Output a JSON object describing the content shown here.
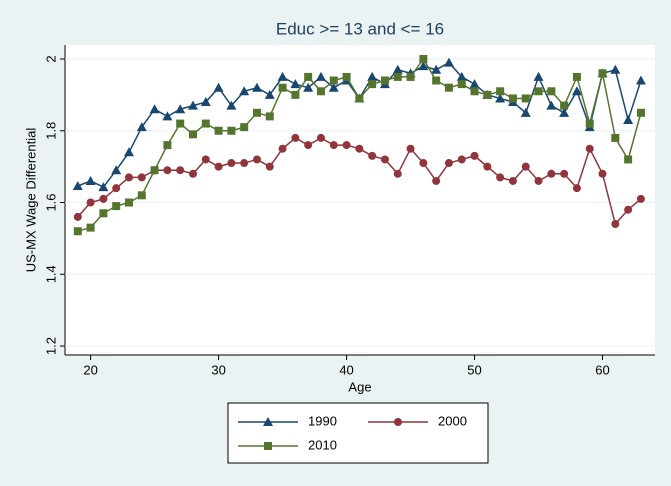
{
  "chart_data": {
    "type": "line",
    "title": "Educ >= 13 and <= 16",
    "xlabel": "Age",
    "ylabel": "US-MX Wage Differential",
    "x": [
      19,
      20,
      21,
      22,
      23,
      24,
      25,
      26,
      27,
      28,
      29,
      30,
      31,
      32,
      33,
      34,
      35,
      36,
      37,
      38,
      39,
      40,
      41,
      42,
      43,
      44,
      45,
      46,
      47,
      48,
      49,
      50,
      51,
      52,
      53,
      54,
      55,
      56,
      57,
      58,
      59,
      60,
      61,
      62,
      63
    ],
    "series": [
      {
        "name": "1990",
        "color": "#1a476f",
        "marker": "triangle",
        "values": [
          1.646,
          1.66,
          1.643,
          1.69,
          1.74,
          1.81,
          1.86,
          1.84,
          1.86,
          1.87,
          1.88,
          1.92,
          1.87,
          1.91,
          1.92,
          1.9,
          1.95,
          1.93,
          1.92,
          1.95,
          1.92,
          1.94,
          1.89,
          1.95,
          1.93,
          1.97,
          1.96,
          1.98,
          1.97,
          1.99,
          1.95,
          1.93,
          1.9,
          1.89,
          1.88,
          1.85,
          1.95,
          1.87,
          1.85,
          1.91,
          1.81,
          1.96,
          1.97,
          1.83,
          1.94
        ]
      },
      {
        "name": "2000",
        "color": "#90353b",
        "marker": "circle",
        "values": [
          1.56,
          1.6,
          1.61,
          1.64,
          1.67,
          1.67,
          1.69,
          1.69,
          1.69,
          1.68,
          1.72,
          1.7,
          1.71,
          1.71,
          1.72,
          1.7,
          1.75,
          1.78,
          1.76,
          1.78,
          1.76,
          1.76,
          1.75,
          1.73,
          1.72,
          1.68,
          1.75,
          1.71,
          1.66,
          1.71,
          1.72,
          1.73,
          1.7,
          1.67,
          1.66,
          1.7,
          1.66,
          1.68,
          1.68,
          1.64,
          1.75,
          1.68,
          1.54,
          1.58,
          1.61
        ]
      },
      {
        "name": "2010",
        "color": "#55752f",
        "marker": "square",
        "values": [
          1.52,
          1.53,
          1.57,
          1.59,
          1.6,
          1.62,
          1.69,
          1.76,
          1.82,
          1.79,
          1.82,
          1.8,
          1.8,
          1.81,
          1.85,
          1.84,
          1.92,
          1.9,
          1.95,
          1.91,
          1.94,
          1.95,
          1.89,
          1.93,
          1.94,
          1.95,
          1.95,
          2.0,
          1.94,
          1.92,
          1.93,
          1.91,
          1.9,
          1.91,
          1.89,
          1.89,
          1.91,
          1.91,
          1.87,
          1.95,
          1.82,
          1.96,
          1.78,
          1.72,
          1.85
        ]
      }
    ],
    "xlim": [
      18,
      64.1
    ],
    "ylim": [
      1.175,
      2.039
    ],
    "xticks": [
      20,
      30,
      40,
      50,
      60
    ],
    "yticks": [
      1.2,
      1.4,
      1.6,
      1.8,
      2
    ],
    "grid": true
  }
}
